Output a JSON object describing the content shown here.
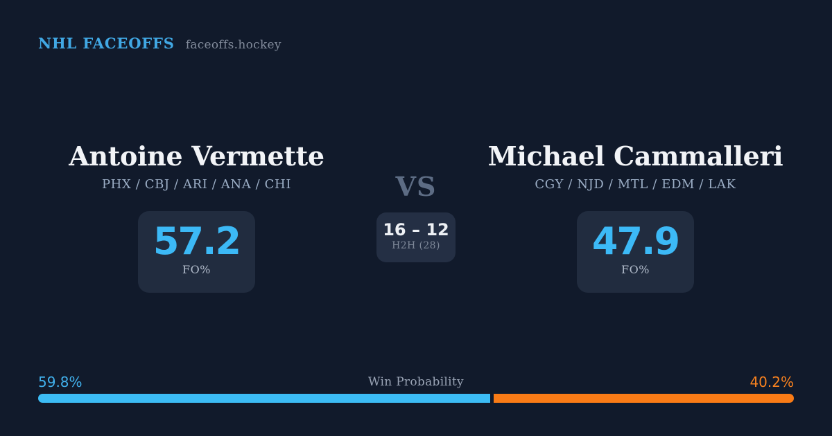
{
  "header": {
    "brand": "NHL FACEOFFS",
    "site": "faceoffs.hockey"
  },
  "matchup": {
    "left": {
      "name": "Antoine Vermette",
      "teams": "PHX / CBJ / ARI / ANA / CHI",
      "value": "57.2",
      "stat_label": "FO%"
    },
    "vs_label": "VS",
    "h2h": {
      "score": "16 – 12",
      "label": "H2H (28)"
    },
    "right": {
      "name": "Michael Cammalleri",
      "teams": "CGY / NJD / MTL / EDM / LAK",
      "value": "47.9",
      "stat_label": "FO%"
    }
  },
  "win_probability": {
    "title": "Win Probability",
    "left_label": "59.8%",
    "right_label": "40.2%",
    "left_value": 59.8,
    "right_value": 40.2
  },
  "colors": {
    "background": "#111a2b",
    "card_box": "#212c3f",
    "brand_blue": "#41a8e4",
    "accent_blue": "#3cb9f6",
    "accent_orange": "#f97b16",
    "name_white": "#f2f4f7",
    "muted_slate": "#9caec6"
  }
}
